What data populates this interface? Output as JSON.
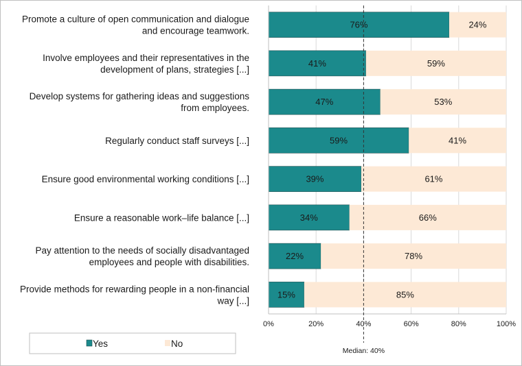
{
  "chart_data": {
    "type": "bar",
    "orientation": "horizontal",
    "stacked": true,
    "categories": [
      [
        "Promote a culture of open communication and dialogue",
        "and encourage teamwork."
      ],
      [
        "Involve employees and their representatives in the",
        "development of plans, strategies [...]"
      ],
      [
        "Develop systems for gathering ideas and suggestions",
        "from employees."
      ],
      [
        "Regularly conduct staff surveys [...]"
      ],
      [
        "Ensure good environmental working conditions [...]"
      ],
      [
        "Ensure a reasonable work–life balance [...]"
      ],
      [
        "Pay attention to the needs of socially disadvantaged",
        "employees and people with disabilities."
      ],
      [
        "Provide methods for rewarding people in a non-financial",
        "way [...]"
      ]
    ],
    "series": [
      {
        "name": "Yes",
        "color": "#1b8a8c",
        "values": [
          76,
          41,
          47,
          59,
          39,
          34,
          22,
          15
        ]
      },
      {
        "name": "No",
        "color": "#fde9d6",
        "values": [
          24,
          59,
          53,
          41,
          61,
          66,
          78,
          85
        ]
      }
    ],
    "value_suffix": "%",
    "xlim": [
      0,
      100
    ],
    "xticks": [
      0,
      20,
      40,
      60,
      80,
      100
    ],
    "xtick_labels": [
      "0%",
      "20%",
      "40%",
      "60%",
      "80%",
      "100%"
    ],
    "median": {
      "value": 40,
      "label": "Median: 40%"
    },
    "gridlines": true,
    "legend_position": "bottom-left",
    "legend": [
      {
        "label": "Yes",
        "color": "#1b8a8c"
      },
      {
        "label": "No",
        "color": "#fde9d6"
      }
    ]
  }
}
